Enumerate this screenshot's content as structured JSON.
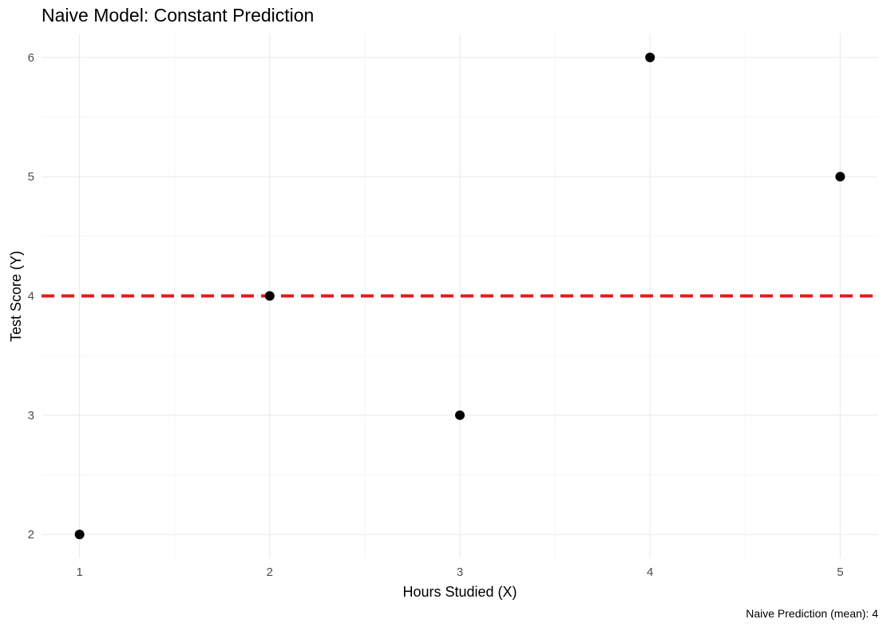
{
  "chart_data": {
    "type": "scatter",
    "title": "Naive Model: Constant Prediction",
    "xlabel": "Hours Studied (X)",
    "ylabel": "Test Score (Y)",
    "caption": "Naive Prediction (mean): 4",
    "x": [
      1,
      2,
      3,
      4,
      5
    ],
    "y": [
      2,
      4,
      3,
      6,
      5
    ],
    "xlim": [
      0.8,
      5.2
    ],
    "ylim": [
      1.8,
      6.2
    ],
    "xticks": [
      1,
      2,
      3,
      4,
      5
    ],
    "yticks": [
      2,
      3,
      4,
      5,
      6
    ],
    "reference_line": {
      "type": "horizontal",
      "y": 4,
      "style": "dashed",
      "color": "#e41a1c"
    },
    "point_color": "#000000",
    "grid": true,
    "legend": "none"
  }
}
